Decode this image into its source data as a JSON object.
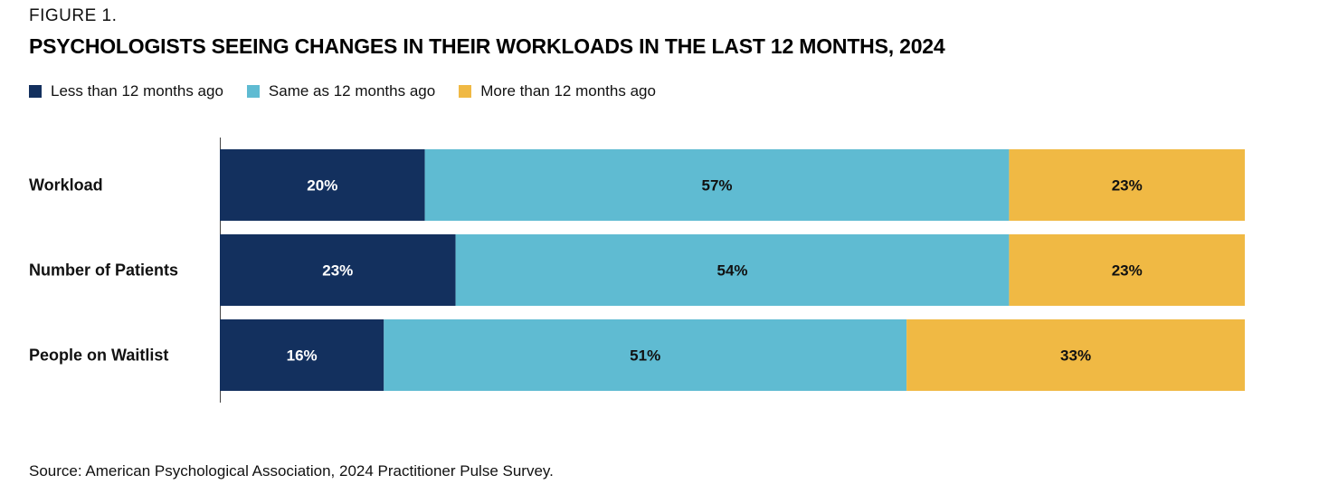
{
  "figure_label": "FIGURE 1.",
  "source": "Source: American Psychological Association, 2024 Practitioner Pulse Survey.",
  "colors": {
    "less": "#13305e",
    "same": "#5fbbd2",
    "more": "#f0b944"
  },
  "chart_data": {
    "type": "bar",
    "orientation": "horizontal",
    "stacked": true,
    "title": "PSYCHOLOGISTS SEEING CHANGES IN THEIR WORKLOADS IN THE LAST 12 MONTHS, 2024",
    "categories": [
      "Workload",
      "Number of Patients",
      "People on Waitlist"
    ],
    "series": [
      {
        "name": "Less than 12 months ago",
        "color_key": "less",
        "values": [
          20,
          23,
          16
        ],
        "labels": [
          "20%",
          "23%",
          "16%"
        ]
      },
      {
        "name": "Same as 12 months ago",
        "color_key": "same",
        "values": [
          57,
          54,
          51
        ],
        "labels": [
          "57%",
          "54%",
          "51%"
        ]
      },
      {
        "name": "More than 12 months ago",
        "color_key": "more",
        "values": [
          23,
          23,
          33
        ],
        "labels": [
          "23%",
          "23%",
          "33%"
        ]
      }
    ],
    "legend": "top-left",
    "grid": false
  }
}
